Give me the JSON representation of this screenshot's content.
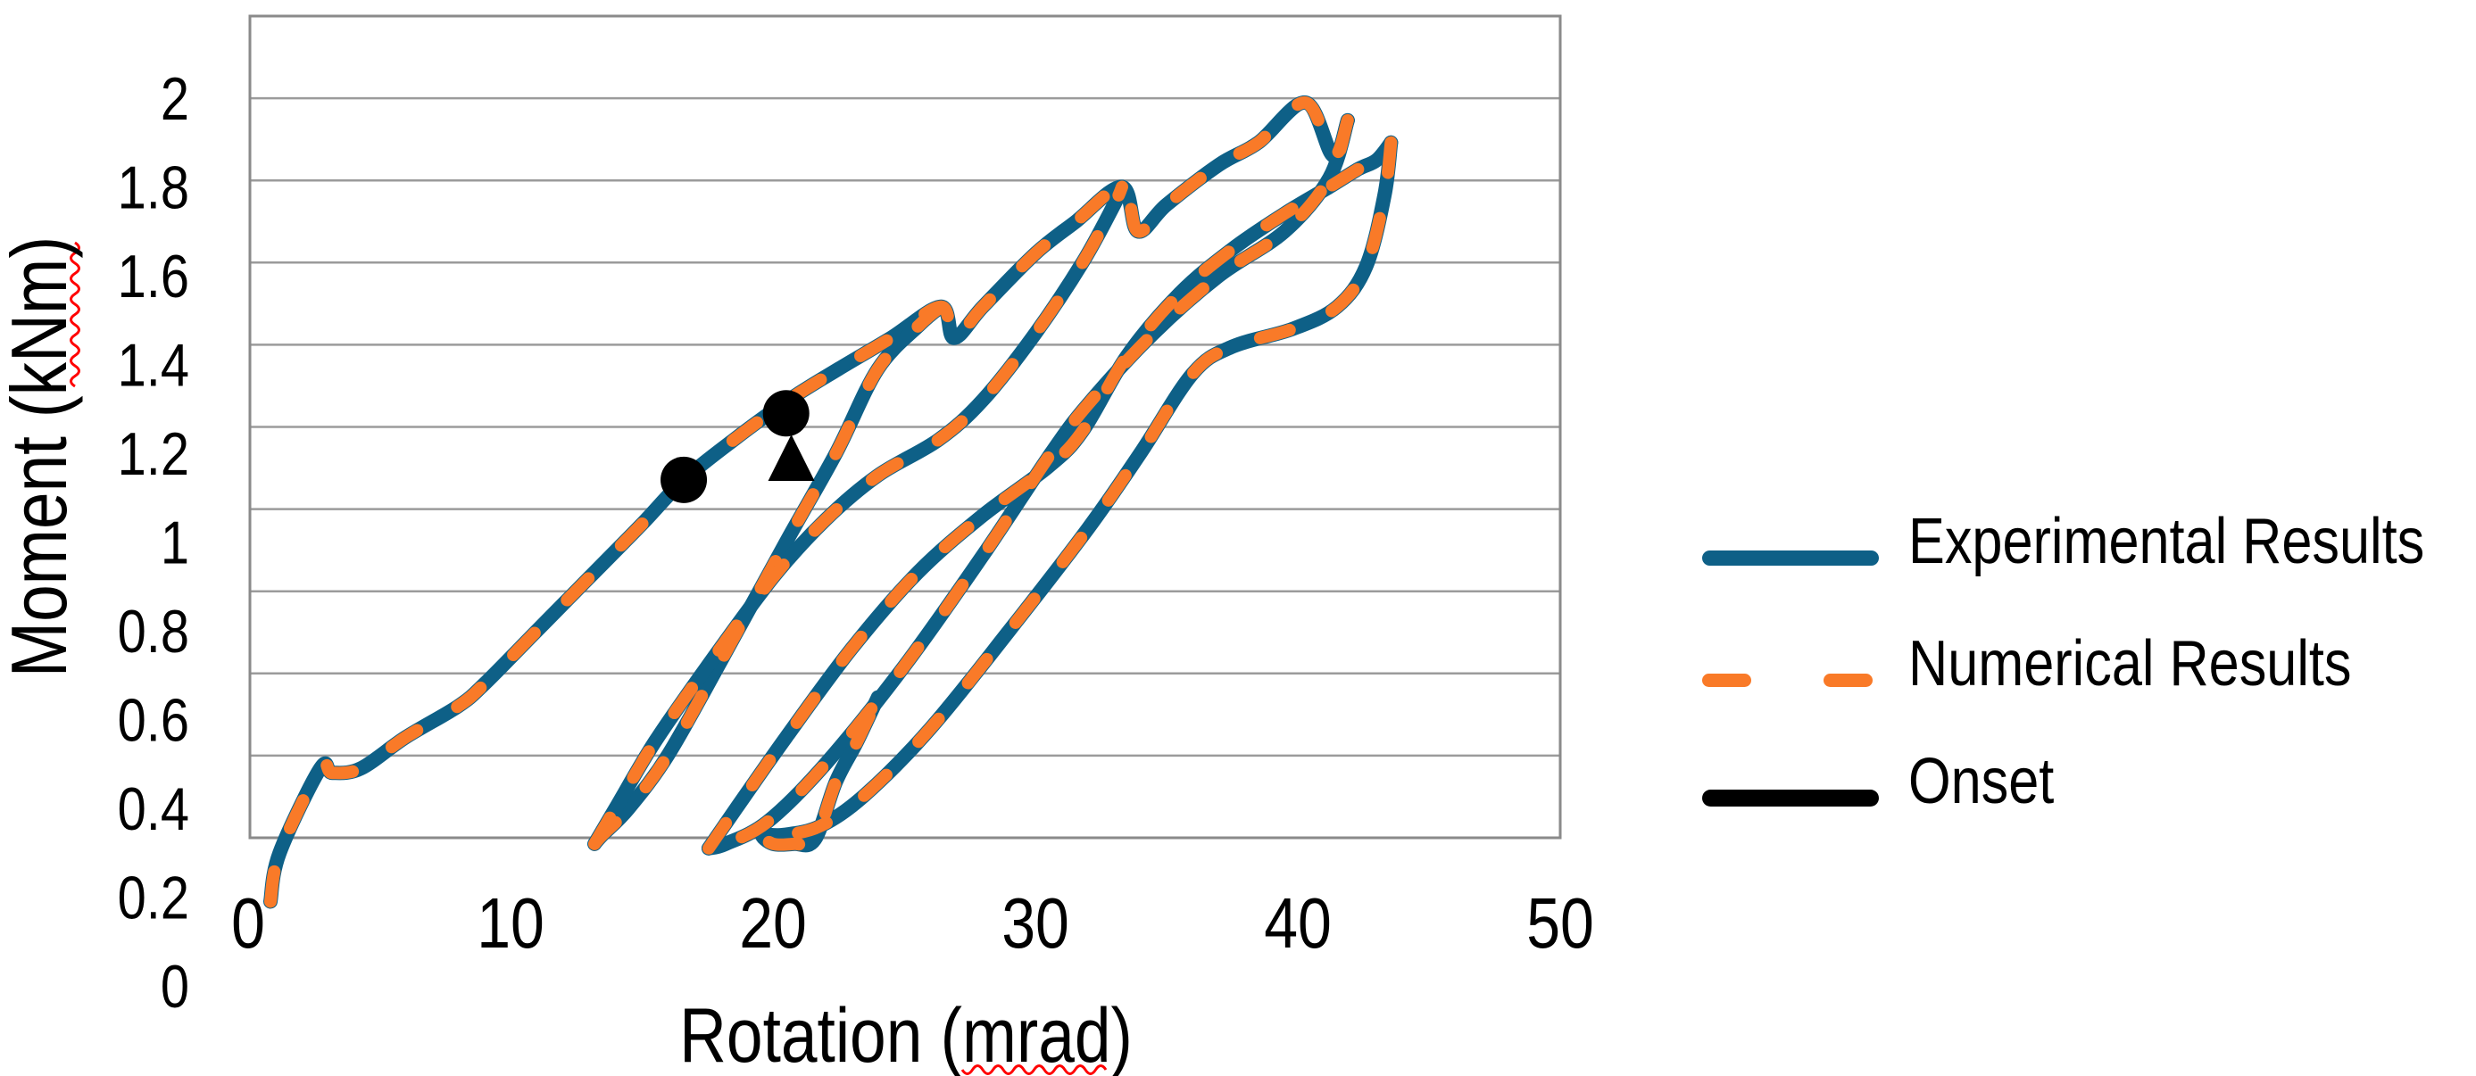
{
  "axes": {
    "x": {
      "title": "Rotation (mrad)",
      "ticks": [
        "0",
        "10",
        "20",
        "30",
        "40",
        "50"
      ],
      "range": [
        0,
        50
      ],
      "spellcheck_underlined_word": "mrad"
    },
    "y": {
      "title": "Moment (kNm)",
      "ticks": [
        "2",
        "1.8",
        "1.6",
        "1.4",
        "1.2",
        "1",
        "0.8",
        "0.6",
        "0.4",
        "0.2",
        "0"
      ],
      "range": [
        0,
        2
      ],
      "spellcheck_underlined_word": "kNm"
    }
  },
  "legend": {
    "items": [
      {
        "label": "Experimental Results",
        "color": "#0E6087",
        "style": "solid"
      },
      {
        "label": "Numerical Results",
        "color": "#F97A28",
        "style": "dashed"
      },
      {
        "label": "Onset",
        "color": "#000000",
        "style": "solid-thick"
      }
    ]
  },
  "style_colors": {
    "experimental": "#0E6087",
    "numerical": "#F97A28",
    "onset": "#000000",
    "grid": "#9B9B9B",
    "border": "#8A8A8A",
    "spellcheck_red": "#FF0000"
  },
  "chart_data": {
    "type": "line",
    "title": "",
    "xlabel": "Rotation (mrad)",
    "ylabel": "Moment (kNm)",
    "xlim": [
      0,
      50
    ],
    "ylim": [
      0,
      2
    ],
    "grid": {
      "horizontal": true,
      "vertical": false
    },
    "legend_position": "right-middle",
    "series": [
      {
        "name": "Experimental Results",
        "type": "line",
        "style": "solid",
        "color": "#0E6087",
        "segments": {
          "envelope": [
            [
              0.85,
              0.19
            ],
            [
              1.2,
              0.3
            ],
            [
              2.75,
              0.49
            ],
            [
              3.2,
              0.48
            ],
            [
              4.3,
              0.49
            ],
            [
              6,
              0.56
            ],
            [
              8,
              0.63
            ],
            [
              9,
              0.68
            ],
            [
              11,
              0.8
            ],
            [
              13,
              0.92
            ],
            [
              15,
              1.04
            ],
            [
              16.6,
              1.14
            ],
            [
              18.5,
              1.23
            ],
            [
              20.6,
              1.32
            ],
            [
              22.5,
              1.39
            ],
            [
              24.5,
              1.46
            ],
            [
              26.4,
              1.53
            ],
            [
              26.9,
              1.46
            ],
            [
              28,
              1.53
            ],
            [
              30,
              1.65
            ],
            [
              31.5,
              1.72
            ],
            [
              33.3,
              1.8
            ],
            [
              33.9,
              1.7
            ],
            [
              35,
              1.76
            ],
            [
              37,
              1.85
            ],
            [
              38.5,
              1.9
            ],
            [
              40.3,
              1.99
            ],
            [
              41.35,
              1.87
            ],
            [
              41.9,
              1.95
            ]
          ],
          "unload1": [
            [
              26.4,
              1.53
            ],
            [
              25.6,
              1.49
            ],
            [
              24,
              1.39
            ],
            [
              22.4,
              1.2
            ],
            [
              20.5,
              1.0
            ],
            [
              18,
              0.73
            ],
            [
              16,
              0.52
            ],
            [
              14.5,
              0.4
            ],
            [
              13.5,
              0.34
            ],
            [
              13.2,
              0.32
            ]
          ],
          "reload1": [
            [
              13.2,
              0.32
            ],
            [
              14,
              0.4
            ],
            [
              15.5,
              0.55
            ],
            [
              17.5,
              0.72
            ],
            [
              20,
              0.92
            ],
            [
              22,
              1.05
            ],
            [
              24,
              1.15
            ],
            [
              26.3,
              1.23
            ],
            [
              28,
              1.32
            ],
            [
              30,
              1.47
            ],
            [
              31.8,
              1.63
            ],
            [
              33,
              1.76
            ],
            [
              33.3,
              1.8
            ]
          ],
          "unload2": [
            [
              41.9,
              1.95
            ],
            [
              41.2,
              1.82
            ],
            [
              39.5,
              1.7
            ],
            [
              37,
              1.6
            ],
            [
              34.5,
              1.47
            ],
            [
              32,
              1.31
            ],
            [
              30.6,
              1.2
            ],
            [
              28,
              0.97
            ],
            [
              25,
              0.72
            ],
            [
              22,
              0.5
            ],
            [
              19.8,
              0.37
            ],
            [
              18.2,
              0.32
            ],
            [
              17.55,
              0.31
            ]
          ],
          "reload2": [
            [
              17.55,
              0.31
            ],
            [
              18.6,
              0.4
            ],
            [
              20.5,
              0.56
            ],
            [
              23,
              0.76
            ],
            [
              25.5,
              0.93
            ],
            [
              28,
              1.06
            ],
            [
              30.5,
              1.17
            ],
            [
              31.8,
              1.25
            ],
            [
              33.5,
              1.42
            ],
            [
              35.5,
              1.56
            ],
            [
              37.5,
              1.66
            ],
            [
              39.5,
              1.74
            ],
            [
              41.2,
              1.8
            ],
            [
              42.3,
              1.84
            ],
            [
              43,
              1.86
            ],
            [
              43.55,
              1.9
            ]
          ],
          "final_unload": [
            [
              43.55,
              1.9
            ],
            [
              43.3,
              1.78
            ],
            [
              42.6,
              1.62
            ],
            [
              41.5,
              1.53
            ],
            [
              39.8,
              1.48
            ],
            [
              37.5,
              1.44
            ],
            [
              36,
              1.38
            ],
            [
              34,
              1.2
            ],
            [
              32,
              1.03
            ],
            [
              29,
              0.8
            ],
            [
              26,
              0.58
            ],
            [
              23.5,
              0.43
            ],
            [
              21.8,
              0.36
            ],
            [
              20.4,
              0.34
            ],
            [
              19.6,
              0.34
            ],
            [
              20,
              0.32
            ],
            [
              20.8,
              0.32
            ],
            [
              21.6,
              0.33
            ],
            [
              22.4,
              0.46
            ],
            [
              23.2,
              0.55
            ],
            [
              24,
              0.65
            ]
          ]
        }
      },
      {
        "name": "Numerical Results",
        "type": "line",
        "style": "dashed",
        "color": "#F97A28",
        "segments": "same_as_experimental"
      },
      {
        "name": "Onset",
        "type": "scatter",
        "color": "#000000",
        "points": [
          {
            "shape": "circle",
            "x": 16.6,
            "y": 1.14
          },
          {
            "shape": "circle",
            "x": 20.5,
            "y": 1.29
          },
          {
            "shape": "triangle",
            "x": 20.7,
            "y": 1.19
          }
        ]
      }
    ]
  }
}
